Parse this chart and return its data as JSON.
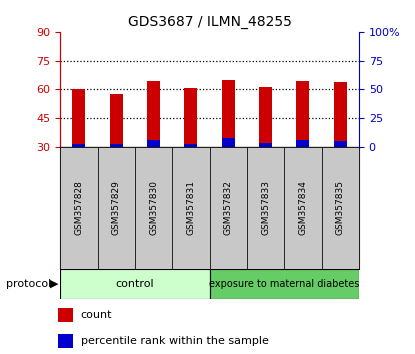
{
  "title": "GDS3687 / ILMN_48255",
  "samples": [
    "GSM357828",
    "GSM357829",
    "GSM357830",
    "GSM357831",
    "GSM357832",
    "GSM357833",
    "GSM357834",
    "GSM357835"
  ],
  "count_values": [
    60.2,
    57.5,
    64.5,
    60.5,
    65.0,
    61.0,
    64.5,
    64.0
  ],
  "percentile_values": [
    1.5,
    1.5,
    3.5,
    1.5,
    4.5,
    2.0,
    3.5,
    3.0
  ],
  "ymin": 30,
  "ymax": 90,
  "yticks_left": [
    30,
    45,
    60,
    75,
    90
  ],
  "yticks_right": [
    0,
    25,
    50,
    75,
    100
  ],
  "ytick_right_labels": [
    "0",
    "25",
    "50",
    "75",
    "100%"
  ],
  "color_red": "#cc0000",
  "color_blue": "#0000cc",
  "color_gray_bg": "#c8c8c8",
  "color_control": "#ccffcc",
  "color_diabetes": "#66cc66",
  "protocol_groups": [
    "control",
    "exposure to maternal diabetes"
  ],
  "xlabel": "protocol",
  "legend_count": "count",
  "legend_percentile": "percentile rank within the sample",
  "bar_width": 0.35
}
